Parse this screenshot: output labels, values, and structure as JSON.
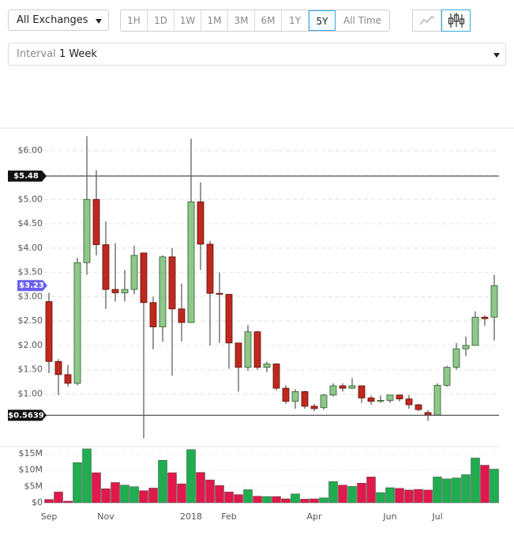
{
  "controls": {
    "exchange": "All Exchanges",
    "ranges": [
      "1H",
      "1D",
      "1W",
      "1M",
      "3M",
      "6M",
      "1Y",
      "5Y",
      "All Time"
    ],
    "selected_range_index": 7,
    "interval_label": "Interval",
    "interval_value": "1 Week"
  },
  "chart_data": {
    "type": "candlestick",
    "categories": [
      "Sep",
      null,
      null,
      null,
      null,
      null,
      "Nov",
      null,
      null,
      null,
      null,
      null,
      null,
      null,
      null,
      "2018",
      null,
      null,
      null,
      "Feb",
      null,
      null,
      null,
      null,
      null,
      null,
      null,
      null,
      "Apr",
      null,
      null,
      null,
      null,
      null,
      null,
      null,
      "Jun",
      null,
      null,
      null,
      null,
      "Jul",
      null,
      null,
      null,
      null,
      null,
      null
    ],
    "open": [
      2.9,
      1.67,
      1.4,
      1.22,
      3.7,
      5.0,
      4.07,
      3.15,
      3.08,
      3.15,
      3.9,
      2.88,
      2.38,
      3.82,
      2.75,
      2.47,
      4.95,
      4.08,
      3.07,
      3.05,
      2.05,
      1.55,
      2.28,
      1.55,
      1.62,
      1.12,
      0.85,
      1.05,
      0.75,
      0.72,
      0.98,
      1.17,
      1.12,
      1.17,
      0.92,
      0.85,
      0.87,
      0.98,
      0.9,
      0.78,
      0.62,
      0.57,
      1.18,
      1.55,
      1.93,
      2.0,
      2.58,
      2.58
    ],
    "close": [
      1.67,
      1.4,
      1.22,
      3.7,
      5.0,
      4.07,
      3.15,
      3.08,
      3.15,
      3.85,
      2.88,
      2.38,
      3.82,
      2.75,
      2.47,
      4.95,
      4.08,
      3.07,
      3.05,
      2.05,
      1.55,
      2.28,
      1.55,
      1.62,
      1.12,
      0.85,
      1.05,
      0.75,
      0.7,
      0.98,
      1.17,
      1.12,
      1.17,
      0.92,
      0.85,
      0.87,
      0.98,
      0.9,
      0.78,
      0.68,
      0.57,
      1.18,
      1.55,
      1.93,
      2.0,
      2.58,
      2.55,
      3.23
    ],
    "high": [
      3.08,
      1.72,
      1.6,
      3.8,
      6.3,
      5.6,
      4.55,
      4.1,
      3.55,
      4.05,
      3.9,
      3.0,
      3.85,
      4.0,
      3.27,
      6.25,
      5.35,
      4.15,
      3.5,
      3.05,
      2.05,
      2.42,
      2.3,
      1.67,
      1.62,
      1.18,
      1.1,
      1.07,
      0.8,
      1.0,
      1.22,
      1.22,
      1.33,
      1.17,
      0.97,
      0.97,
      0.98,
      0.98,
      0.98,
      0.8,
      0.67,
      1.22,
      1.58,
      2.05,
      2.18,
      2.7,
      2.62,
      3.45
    ],
    "low": [
      1.43,
      0.98,
      1.15,
      1.18,
      3.45,
      3.85,
      2.75,
      2.9,
      2.9,
      3.05,
      0.09,
      1.92,
      2.07,
      1.38,
      2.08,
      2.47,
      3.55,
      2.0,
      2.05,
      1.52,
      1.05,
      1.48,
      1.5,
      1.45,
      1.08,
      0.8,
      0.7,
      0.7,
      0.65,
      0.68,
      0.95,
      1.05,
      1.1,
      0.82,
      0.78,
      0.82,
      0.82,
      0.85,
      0.7,
      0.65,
      0.45,
      0.55,
      1.15,
      1.5,
      1.78,
      2.0,
      2.4,
      2.1
    ],
    "up_color": "#8fc78a",
    "down_color": "#c0281e",
    "ylim": [
      0.05,
      6.45
    ],
    "yticks": [
      {
        "value": 1,
        "label": "$1.00"
      },
      {
        "value": 1.5,
        "label": "$1.50"
      },
      {
        "value": 2,
        "label": "$2.00"
      },
      {
        "value": 2.5,
        "label": "$2.50"
      },
      {
        "value": 3,
        "label": "$3.00"
      },
      {
        "value": 3.5,
        "label": "$3.50"
      },
      {
        "value": 4,
        "label": "$4.00"
      },
      {
        "value": 4.5,
        "label": "$4.50"
      },
      {
        "value": 5,
        "label": "$5.00"
      },
      {
        "value": 5.5,
        "label": "$5.50"
      },
      {
        "value": 6,
        "label": "$6.00"
      }
    ],
    "grid": true,
    "price_lines": [
      {
        "value": 5.48,
        "label": "$5.48"
      },
      {
        "value": 0.5639,
        "label": "$0.5639"
      }
    ],
    "current_price": {
      "value": 3.23,
      "label": "$3.23",
      "color": "#6b5ff2"
    },
    "volume": {
      "values": [
        1.0,
        3.3,
        0.5,
        12.3,
        16.5,
        9.2,
        4.3,
        6.2,
        5.4,
        4.9,
        3.7,
        4.5,
        13.0,
        9.2,
        5.8,
        16.3,
        9.3,
        7.0,
        5.3,
        3.3,
        2.5,
        4.0,
        2.0,
        1.9,
        1.9,
        1.2,
        2.7,
        1.1,
        1.2,
        1.5,
        6.5,
        5.4,
        5.0,
        6.0,
        7.9,
        3.1,
        4.6,
        4.4,
        3.9,
        4.1,
        3.9,
        7.9,
        7.3,
        7.6,
        8.6,
        13.7,
        11.5,
        10.3
      ],
      "up_color": "#1fae4f",
      "down_color": "#e0194a",
      "ylim": [
        0,
        17.2
      ],
      "yticks": [
        {
          "value": 0,
          "label": "$0"
        },
        {
          "value": 5,
          "label": "$5M"
        },
        {
          "value": 10,
          "label": "$10M"
        },
        {
          "value": 15,
          "label": "$15M"
        }
      ]
    }
  }
}
